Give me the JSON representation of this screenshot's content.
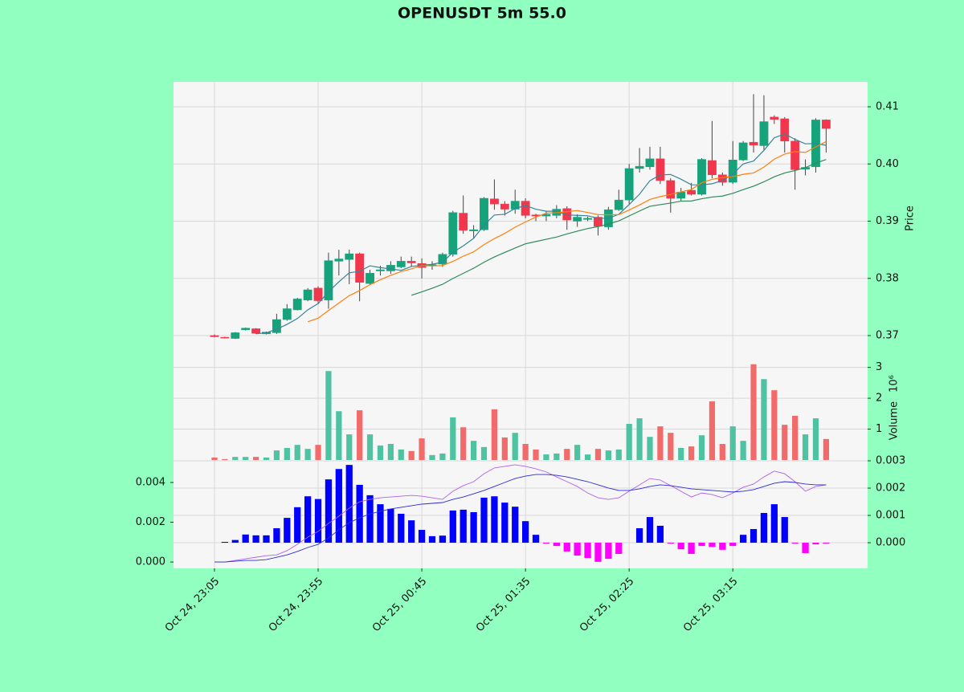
{
  "chart_data": [
    {
      "type": "candlestick",
      "title": "OPENUSDT 5m 55.0",
      "ylabel": "Price",
      "xlim": [
        -3.95,
        63.0
      ],
      "ylim": [
        0.36509,
        0.41435
      ],
      "yticks": [
        0.37,
        0.38,
        0.39,
        {
          "value": 0.4,
          "label": "0.40"
        },
        0.41
      ],
      "grid": true,
      "up_color": "#16a37b",
      "down_color": "#f2364d",
      "wick_color": "#444444",
      "open": [
        0.37,
        0.3697,
        0.3695,
        0.371,
        0.3712,
        0.3703,
        0.3705,
        0.3728,
        0.3745,
        0.3762,
        0.3783,
        0.3762,
        0.383,
        0.3833,
        0.3843,
        0.3791,
        0.3813,
        0.3813,
        0.382,
        0.383,
        0.3826,
        0.3822,
        0.3825,
        0.3842,
        0.3914,
        0.3883,
        0.3885,
        0.3939,
        0.393,
        0.3921,
        0.3935,
        0.3911,
        0.3909,
        0.391,
        0.3922,
        0.39,
        0.3903,
        0.3907,
        0.389,
        0.392,
        0.3937,
        0.3992,
        0.3995,
        0.4009,
        0.3971,
        0.394,
        0.3954,
        0.3947,
        0.4006,
        0.3981,
        0.3968,
        0.4007,
        0.4038,
        0.4032,
        0.4082,
        0.4079,
        0.404,
        0.3991,
        0.3995,
        0.4077
      ],
      "high": [
        0.3702,
        0.3698,
        0.3706,
        0.3714,
        0.3713,
        0.3707,
        0.3738,
        0.3755,
        0.3766,
        0.3783,
        0.3786,
        0.3845,
        0.385,
        0.385,
        0.3845,
        0.3815,
        0.3822,
        0.383,
        0.3838,
        0.3838,
        0.3835,
        0.383,
        0.3845,
        0.3918,
        0.3945,
        0.3893,
        0.3942,
        0.3973,
        0.3935,
        0.3955,
        0.394,
        0.3913,
        0.3918,
        0.3928,
        0.3926,
        0.3912,
        0.3908,
        0.391,
        0.3925,
        0.3955,
        0.4,
        0.4028,
        0.403,
        0.403,
        0.3975,
        0.3958,
        0.3967,
        0.401,
        0.4075,
        0.3985,
        0.404,
        0.404,
        0.4122,
        0.412,
        0.4085,
        0.4082,
        0.4045,
        0.4008,
        0.408,
        0.4078
      ],
      "low": [
        0.3697,
        0.3695,
        0.3694,
        0.3709,
        0.3703,
        0.3702,
        0.3703,
        0.3726,
        0.3744,
        0.376,
        0.3755,
        0.3747,
        0.3805,
        0.379,
        0.376,
        0.3789,
        0.3805,
        0.3808,
        0.3818,
        0.382,
        0.38,
        0.3815,
        0.382,
        0.3838,
        0.3878,
        0.387,
        0.3883,
        0.392,
        0.391,
        0.3913,
        0.3905,
        0.39,
        0.39,
        0.3905,
        0.3885,
        0.389,
        0.39,
        0.3875,
        0.3885,
        0.3918,
        0.393,
        0.3985,
        0.399,
        0.3965,
        0.3915,
        0.3935,
        0.3945,
        0.3945,
        0.3975,
        0.3962,
        0.3965,
        0.4005,
        0.402,
        0.4025,
        0.407,
        0.402,
        0.3955,
        0.398,
        0.3985,
        0.402
      ],
      "close": [
        0.3698,
        0.3696,
        0.3705,
        0.3713,
        0.3704,
        0.3706,
        0.3728,
        0.3747,
        0.3764,
        0.378,
        0.3761,
        0.3831,
        0.3834,
        0.3843,
        0.3793,
        0.3809,
        0.3815,
        0.3823,
        0.383,
        0.3827,
        0.3819,
        0.3824,
        0.3842,
        0.3915,
        0.3884,
        0.3885,
        0.394,
        0.393,
        0.3921,
        0.3935,
        0.391,
        0.3909,
        0.3912,
        0.3921,
        0.3902,
        0.3907,
        0.3905,
        0.3891,
        0.392,
        0.3937,
        0.3992,
        0.3996,
        0.4009,
        0.3971,
        0.394,
        0.3951,
        0.3947,
        0.4008,
        0.3981,
        0.3968,
        0.4007,
        0.4037,
        0.4033,
        0.4074,
        0.4078,
        0.404,
        0.399,
        0.3994,
        0.4077,
        0.4062
      ],
      "series": [
        {
          "color": "#35859a",
          "values": [
            null,
            null,
            null,
            null,
            0.37032,
            0.37048,
            0.37112,
            0.37196,
            0.37298,
            0.3745,
            0.3756,
            0.37766,
            0.3794,
            0.38098,
            0.38124,
            0.3822,
            0.38188,
            0.38166,
            0.3814,
            0.38208,
            0.38228,
            0.38246,
            0.38284,
            0.38454,
            0.38568,
            0.387,
            0.38932,
            0.39108,
            0.3912,
            0.39222,
            0.39272,
            0.3921,
            0.39174,
            0.39174,
            0.39108,
            0.39102,
            0.39094,
            0.39052,
            0.3905,
            0.3912,
            0.3929,
            0.39472,
            0.39708,
            0.3981,
            0.39816,
            0.39734,
            0.39636,
            0.39634,
            0.39654,
            0.3971,
            0.39822,
            0.40002,
            0.40052,
            0.40238,
            0.40458,
            0.40524,
            0.4043,
            0.40352,
            0.40358,
            0.40326
          ]
        },
        {
          "color": "#ff7f0e",
          "values": [
            null,
            null,
            null,
            null,
            null,
            null,
            null,
            null,
            null,
            0.37241,
            0.37304,
            0.37439,
            0.37568,
            0.37698,
            0.37787,
            0.3789,
            0.37977,
            0.38053,
            0.38119,
            0.38166,
            0.38224,
            0.38217,
            0.38225,
            0.38297,
            0.38388,
            0.38464,
            0.38589,
            0.38696,
            0.38787,
            0.38895,
            0.38986,
            0.39071,
            0.39141,
            0.39147,
            0.39165,
            0.39187,
            0.39152,
            0.39113,
            0.39112,
            0.39114,
            0.39196,
            0.39283,
            0.3938,
            0.3943,
            0.39468,
            0.39512,
            0.39554,
            0.39671,
            0.39732,
            0.39763,
            0.39778,
            0.39819,
            0.39843,
            0.39946,
            0.40084,
            0.40173,
            0.40216,
            0.40202,
            0.40298,
            0.40392
          ]
        },
        {
          "color": "#2e8b57",
          "values": [
            null,
            null,
            null,
            null,
            null,
            null,
            null,
            null,
            null,
            null,
            null,
            null,
            null,
            null,
            null,
            null,
            null,
            null,
            null,
            0.37704,
            0.37764,
            0.37828,
            0.37897,
            0.37998,
            0.38088,
            0.38177,
            0.38283,
            0.38375,
            0.38453,
            0.38531,
            0.38605,
            0.38644,
            0.38683,
            0.38722,
            0.38777,
            0.38826,
            0.38871,
            0.38905,
            0.3895,
            0.39005,
            0.39091,
            0.39177,
            0.39261,
            0.39289,
            0.39317,
            0.3935,
            0.39353,
            0.39392,
            0.39422,
            0.39439,
            0.39487,
            0.39551,
            0.39612,
            0.39688,
            0.39776,
            0.39843,
            0.39885,
            0.39937,
            0.40015,
            0.40078
          ]
        }
      ]
    },
    {
      "type": "bar",
      "ylabel": "Volume",
      "offset_label": "10⁶",
      "ylim": [
        0,
        3.12
      ],
      "yticks": [
        1,
        2,
        3
      ],
      "grid": true,
      "up_color": "#4fc3a1",
      "down_color": "#f26b6b",
      "values": [
        0.08,
        0.03,
        0.1,
        0.1,
        0.1,
        0.08,
        0.31,
        0.39,
        0.49,
        0.36,
        0.49,
        2.88,
        1.58,
        0.83,
        1.61,
        0.83,
        0.47,
        0.52,
        0.34,
        0.29,
        0.7,
        0.16,
        0.21,
        1.38,
        1.06,
        0.62,
        0.42,
        1.64,
        0.73,
        0.88,
        0.52,
        0.34,
        0.18,
        0.21,
        0.36,
        0.49,
        0.18,
        0.36,
        0.31,
        0.34,
        1.17,
        1.35,
        0.75,
        1.09,
        0.88,
        0.39,
        0.44,
        0.8,
        1.9,
        0.52,
        1.09,
        0.62,
        3.1,
        2.62,
        2.26,
        1.14,
        1.43,
        0.83,
        1.35,
        0.68
      ]
    },
    {
      "type": "macd",
      "categories": [
        "Oct 24, 23:05",
        null,
        null,
        null,
        null,
        null,
        null,
        null,
        null,
        null,
        "Oct 24, 23:55",
        null,
        null,
        null,
        null,
        null,
        null,
        null,
        null,
        null,
        "Oct 25, 00:45",
        null,
        null,
        null,
        null,
        null,
        null,
        null,
        null,
        null,
        "Oct 25, 01:35",
        null,
        null,
        null,
        null,
        null,
        null,
        null,
        null,
        null,
        "Oct 25, 02:25",
        null,
        null,
        null,
        null,
        null,
        null,
        null,
        null,
        null,
        "Oct 25, 03:15",
        null,
        null,
        null,
        null,
        null,
        null,
        null,
        null,
        null
      ],
      "ylim": [
        -0.00032,
        0.00513
      ],
      "yticks": [
        {
          "value": 0,
          "label": "0.000"
        },
        {
          "value": 0.002,
          "label": "0.002"
        },
        {
          "value": 0.004,
          "label": "0.004"
        }
      ],
      "y2lim": [
        -0.00094,
        0.00303
      ],
      "y2ticks": [
        {
          "value": 0,
          "label": "0.000"
        },
        {
          "value": 0.001,
          "label": "0.001"
        },
        {
          "value": 0.002,
          "label": "0.002"
        },
        {
          "value": 0.003,
          "label": "0.003"
        }
      ],
      "grid": true,
      "series": [
        {
          "type": "bar",
          "axis": "y2",
          "color": "#0000ff",
          "negative_color": "#ff00ff",
          "values": [
            0,
            3e-05,
            0.0001,
            0.0003,
            0.00027,
            0.00027,
            0.00053,
            0.00091,
            0.0013,
            0.0017,
            0.0016,
            0.00232,
            0.0027,
            0.00285,
            0.00212,
            0.00174,
            0.00141,
            0.00124,
            0.00106,
            0.00082,
            0.00047,
            0.00024,
            0.00026,
            0.00118,
            0.00121,
            0.00112,
            0.00165,
            0.0017,
            0.00147,
            0.00132,
            0.00079,
            0.00029,
            -3e-05,
            -0.00012,
            -0.00032,
            -0.00047,
            -0.00056,
            -0.0007,
            -0.00059,
            -0.00041,
            0,
            0.00053,
            0.00094,
            0.00062,
            -3e-05,
            -0.00024,
            -0.00041,
            -0.00012,
            -0.00015,
            -0.00026,
            -0.00012,
            0.00029,
            0.0005,
            0.00109,
            0.00141,
            0.00094,
            -3e-05,
            -0.00038,
            -6e-05,
            -3e-05
          ]
        },
        {
          "type": "line",
          "color": "#b060f0",
          "values": [
            0,
            0,
            8e-05,
            0.00016,
            0.00024,
            0.00032,
            0.00036,
            0.00057,
            0.00089,
            0.00125,
            0.00154,
            0.00194,
            0.0023,
            0.00271,
            0.00303,
            0.00315,
            0.00323,
            0.00327,
            0.00331,
            0.00335,
            0.00331,
            0.00323,
            0.00315,
            0.00356,
            0.00384,
            0.00404,
            0.00444,
            0.00473,
            0.00481,
            0.00489,
            0.00481,
            0.00469,
            0.00453,
            0.00428,
            0.00404,
            0.0038,
            0.00347,
            0.00323,
            0.00315,
            0.00323,
            0.00356,
            0.00388,
            0.0042,
            0.00412,
            0.00384,
            0.00356,
            0.00327,
            0.00347,
            0.00339,
            0.00323,
            0.00347,
            0.00376,
            0.00392,
            0.00428,
            0.00457,
            0.00444,
            0.00404,
            0.00356,
            0.0038,
            0.00388
          ]
        },
        {
          "type": "line",
          "color": "#2a2ae0",
          "values": [
            0,
            0,
            4e-05,
            8e-05,
            8e-05,
            0.00012,
            0.00024,
            0.00036,
            0.00053,
            0.00073,
            0.00089,
            0.00121,
            0.00162,
            0.00198,
            0.00222,
            0.00242,
            0.00255,
            0.00267,
            0.00275,
            0.00283,
            0.00291,
            0.00295,
            0.00299,
            0.00315,
            0.00327,
            0.00343,
            0.0036,
            0.0038,
            0.004,
            0.0042,
            0.00432,
            0.0044,
            0.0044,
            0.00436,
            0.00428,
            0.00416,
            0.00404,
            0.00388,
            0.00372,
            0.0036,
            0.0036,
            0.00368,
            0.0038,
            0.00388,
            0.00384,
            0.00376,
            0.00368,
            0.00364,
            0.0036,
            0.00356,
            0.00352,
            0.00356,
            0.00364,
            0.0038,
            0.00396,
            0.00404,
            0.004,
            0.00392,
            0.00388,
            0.00388
          ]
        }
      ]
    }
  ]
}
